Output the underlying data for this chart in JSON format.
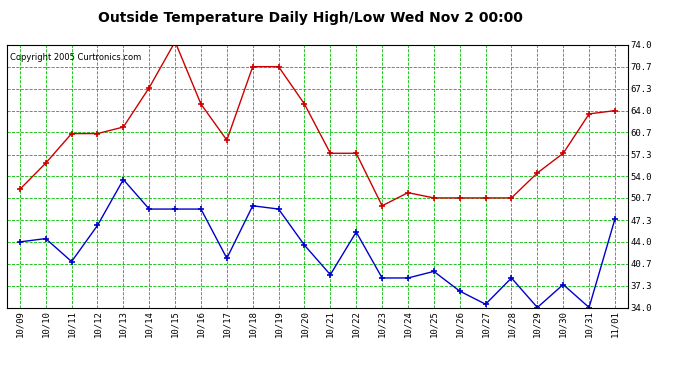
{
  "title": "Outside Temperature Daily High/Low Wed Nov 2 00:00",
  "copyright": "Copyright 2005 Curtronics.com",
  "x_labels": [
    "10/09",
    "10/10",
    "10/11",
    "10/12",
    "10/13",
    "10/14",
    "10/15",
    "10/16",
    "10/17",
    "10/18",
    "10/19",
    "10/20",
    "10/21",
    "10/22",
    "10/23",
    "10/24",
    "10/25",
    "10/26",
    "10/27",
    "10/28",
    "10/29",
    "10/30",
    "10/31",
    "11/01"
  ],
  "high_values": [
    52.0,
    56.0,
    60.5,
    60.5,
    61.5,
    67.5,
    74.5,
    65.0,
    59.5,
    70.7,
    70.7,
    65.0,
    57.5,
    57.5,
    49.5,
    51.5,
    50.7,
    50.7,
    50.7,
    50.7,
    54.5,
    57.5,
    63.5,
    64.0
  ],
  "low_values": [
    44.0,
    44.5,
    41.0,
    46.5,
    53.5,
    49.0,
    49.0,
    49.0,
    41.5,
    49.5,
    49.0,
    43.5,
    39.0,
    45.5,
    38.5,
    38.5,
    39.5,
    36.5,
    34.5,
    38.5,
    34.0,
    37.5,
    34.0,
    47.5
  ],
  "high_color": "#cc0000",
  "low_color": "#0000cc",
  "bg_color": "#ffffff",
  "plot_bg_color": "#ffffff",
  "grid_color": "#00bb00",
  "title_color": "#000000",
  "ylim": [
    34.0,
    74.0
  ],
  "yticks": [
    34.0,
    37.3,
    40.7,
    44.0,
    47.3,
    50.7,
    54.0,
    57.3,
    60.7,
    64.0,
    67.3,
    70.7,
    74.0
  ]
}
